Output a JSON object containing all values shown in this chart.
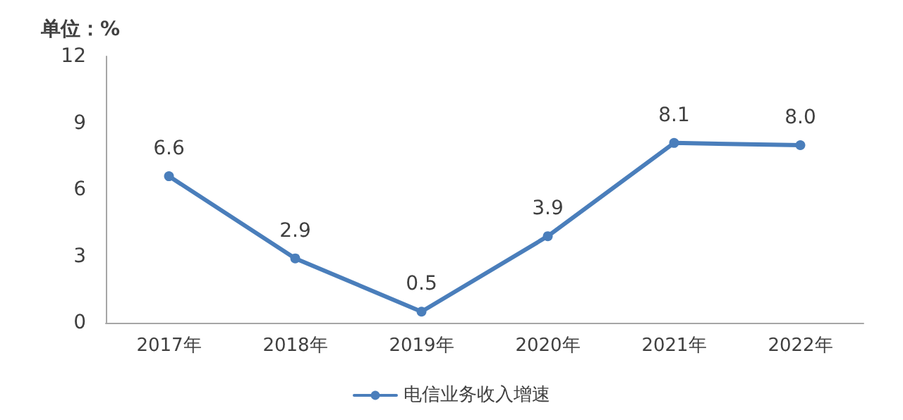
{
  "chart_data": {
    "type": "line",
    "ylabel": "单位：%",
    "categories": [
      "2017年",
      "2018年",
      "2019年",
      "2020年",
      "2021年",
      "2022年"
    ],
    "series": [
      {
        "name": "电信业务收入增速",
        "color": "#4a7ebb",
        "values": [
          6.6,
          2.9,
          0.5,
          3.9,
          8.1,
          8.0
        ],
        "value_labels": [
          "6.6",
          "2.9",
          "0.5",
          "3.9",
          "8.1",
          "8.0"
        ]
      }
    ],
    "ylim": [
      0,
      12
    ],
    "yticks": [
      0,
      3,
      6,
      9,
      12
    ],
    "grid": false,
    "legend": "bottom",
    "marker": "circle",
    "line_style": "solid"
  }
}
